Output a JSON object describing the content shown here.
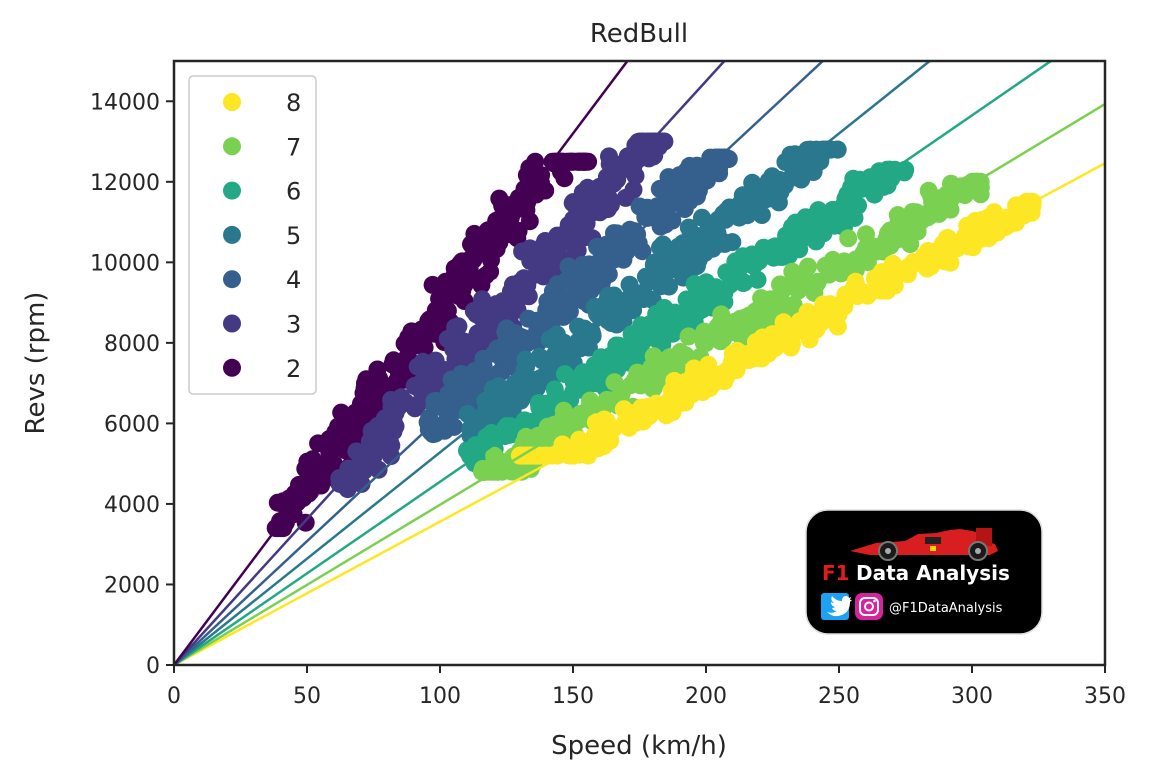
{
  "chart_data": {
    "type": "scatter",
    "title": "RedBull",
    "xlabel": "Speed (km/h)",
    "ylabel": "Revs (rpm)",
    "xlim": [
      0,
      350
    ],
    "ylim": [
      0,
      15000
    ],
    "xticks": [
      0,
      50,
      100,
      150,
      200,
      250,
      300,
      350
    ],
    "yticks": [
      0,
      2000,
      4000,
      6000,
      8000,
      10000,
      12000,
      14000
    ],
    "grid": false,
    "legend": "top-left",
    "series": [
      {
        "name": "8",
        "color": "#fde725",
        "slope": 35.6,
        "speed_range": [
          130,
          325
        ],
        "rpm_range": [
          5200,
          11500
        ],
        "spread": 550
      },
      {
        "name": "7",
        "color": "#7ad151",
        "slope": 39.8,
        "speed_range": [
          115,
          305
        ],
        "rpm_range": [
          4800,
          12000
        ],
        "spread": 650
      },
      {
        "name": "6",
        "color": "#22a884",
        "slope": 45.5,
        "speed_range": [
          110,
          275
        ],
        "rpm_range": [
          5000,
          12300
        ],
        "spread": 750
      },
      {
        "name": "5",
        "color": "#2a788e",
        "slope": 52.8,
        "speed_range": [
          110,
          250
        ],
        "rpm_range": [
          5200,
          12800
        ],
        "spread": 850
      },
      {
        "name": "4",
        "color": "#355f8d",
        "slope": 61.5,
        "speed_range": [
          95,
          210
        ],
        "rpm_range": [
          5400,
          12600
        ],
        "spread": 900
      },
      {
        "name": "3",
        "color": "#443983",
        "slope": 72.5,
        "speed_range": [
          60,
          185
        ],
        "rpm_range": [
          4200,
          13000
        ],
        "spread": 1000
      },
      {
        "name": "2",
        "color": "#440154",
        "slope": 88.0,
        "speed_range": [
          38,
          157
        ],
        "rpm_range": [
          3400,
          12500
        ],
        "spread": 1100
      }
    ]
  },
  "logo": {
    "f1": "F1",
    "name": "Data Analysis",
    "handle": "@F1DataAnalysis",
    "twitter_icon": "twitter-icon",
    "instagram_icon": "instagram-icon"
  }
}
